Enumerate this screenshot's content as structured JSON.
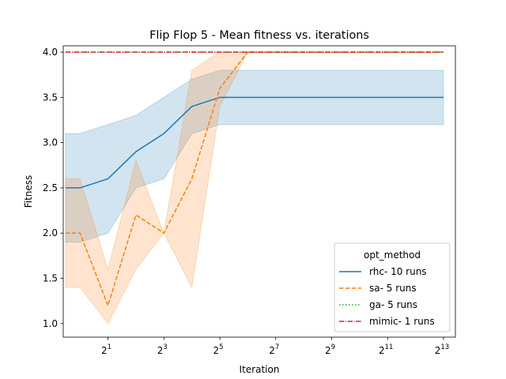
{
  "chart_data": {
    "type": "line",
    "title": "Flip Flop 5 - Mean fitness vs. iterations",
    "xlabel": "Iteration",
    "ylabel": "Fitness",
    "x_scale": "log2",
    "xlim": [
      0.66,
      11000
    ],
    "ylim": [
      0.85,
      4.07
    ],
    "x_ticks": [
      {
        "value": 2,
        "base": "2",
        "exp": "1"
      },
      {
        "value": 8,
        "base": "2",
        "exp": "3"
      },
      {
        "value": 32,
        "base": "2",
        "exp": "5"
      },
      {
        "value": 128,
        "base": "2",
        "exp": "7"
      },
      {
        "value": 512,
        "base": "2",
        "exp": "9"
      },
      {
        "value": 2048,
        "base": "2",
        "exp": "11"
      },
      {
        "value": 8192,
        "base": "2",
        "exp": "13"
      }
    ],
    "y_ticks": [
      {
        "value": 1.0,
        "label": "1.0"
      },
      {
        "value": 1.5,
        "label": "1.5"
      },
      {
        "value": 2.0,
        "label": "2.0"
      },
      {
        "value": 2.5,
        "label": "2.5"
      },
      {
        "value": 3.0,
        "label": "3.0"
      },
      {
        "value": 3.5,
        "label": "3.5"
      },
      {
        "value": 4.0,
        "label": "4.0"
      }
    ],
    "grid": false,
    "legend": {
      "title": "opt_method",
      "position": "lower-right"
    },
    "series": [
      {
        "name": "rhc- 10 runs",
        "color": "#1f77b4",
        "dash": "solid",
        "x": [
          0.7,
          1,
          2,
          4,
          8,
          16,
          32,
          64,
          128,
          256,
          512,
          1024,
          2048,
          4096,
          8192
        ],
        "y": [
          2.5,
          2.5,
          2.6,
          2.9,
          3.1,
          3.4,
          3.5,
          3.5,
          3.5,
          3.5,
          3.5,
          3.5,
          3.5,
          3.5,
          3.5
        ],
        "ci_low": [
          1.9,
          1.9,
          2.0,
          2.5,
          2.6,
          3.1,
          3.2,
          3.2,
          3.2,
          3.2,
          3.2,
          3.2,
          3.2,
          3.2,
          3.2
        ],
        "ci_high": [
          3.1,
          3.1,
          3.2,
          3.3,
          3.5,
          3.7,
          3.8,
          3.8,
          3.8,
          3.8,
          3.8,
          3.8,
          3.8,
          3.8,
          3.8
        ]
      },
      {
        "name": "sa- 5 runs",
        "color": "#ff7f0e",
        "dash": "dashed",
        "x": [
          0.7,
          1,
          2,
          4,
          8,
          16,
          32,
          64,
          128,
          256,
          512,
          1024,
          2048,
          4096,
          8192
        ],
        "y": [
          2.0,
          2.0,
          1.2,
          2.2,
          2.0,
          2.6,
          3.6,
          4.0,
          4.0,
          4.0,
          4.0,
          4.0,
          4.0,
          4.0,
          4.0
        ],
        "ci_low": [
          1.4,
          1.4,
          1.0,
          1.6,
          2.0,
          1.4,
          3.4,
          4.0,
          4.0,
          4.0,
          4.0,
          4.0,
          4.0,
          4.0,
          4.0
        ],
        "ci_high": [
          2.6,
          2.6,
          1.6,
          2.8,
          2.0,
          3.8,
          4.0,
          4.0,
          4.0,
          4.0,
          4.0,
          4.0,
          4.0,
          4.0,
          4.0
        ]
      },
      {
        "name": "ga- 5 runs",
        "color": "#2ca02c",
        "dash": "dotted",
        "x": [
          0.7,
          8192
        ],
        "y": [
          4.0,
          4.0
        ]
      },
      {
        "name": "mimic- 1 runs",
        "color": "#d62728",
        "dash": "dashdot",
        "x": [
          0.7,
          8192
        ],
        "y": [
          4.0,
          4.0
        ]
      }
    ]
  }
}
